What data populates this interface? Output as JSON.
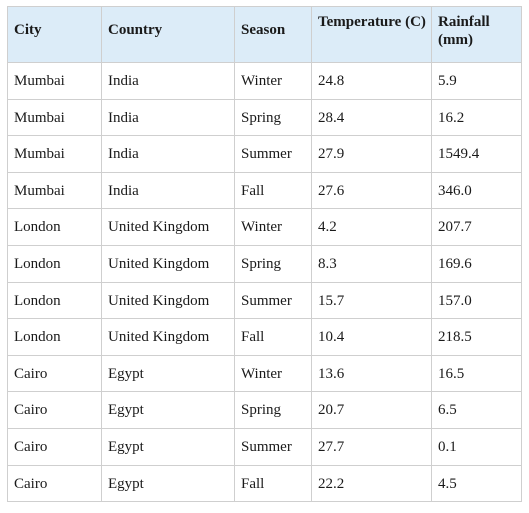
{
  "table": {
    "headers": {
      "city": "City",
      "country": "Country",
      "season": "Season",
      "temperature": "Temperature (C)",
      "rainfall": "Rainfall (mm)"
    },
    "rows": [
      {
        "city": "Mumbai",
        "country": "India",
        "season": "Winter",
        "temperature": "24.8",
        "rainfall": "5.9"
      },
      {
        "city": "Mumbai",
        "country": "India",
        "season": "Spring",
        "temperature": "28.4",
        "rainfall": "16.2"
      },
      {
        "city": "Mumbai",
        "country": "India",
        "season": "Summer",
        "temperature": "27.9",
        "rainfall": "1549.4"
      },
      {
        "city": "Mumbai",
        "country": "India",
        "season": "Fall",
        "temperature": "27.6",
        "rainfall": "346.0"
      },
      {
        "city": "London",
        "country": "United Kingdom",
        "season": "Winter",
        "temperature": "4.2",
        "rainfall": "207.7"
      },
      {
        "city": "London",
        "country": "United Kingdom",
        "season": "Spring",
        "temperature": "8.3",
        "rainfall": "169.6"
      },
      {
        "city": "London",
        "country": "United Kingdom",
        "season": "Summer",
        "temperature": "15.7",
        "rainfall": "157.0"
      },
      {
        "city": "London",
        "country": "United Kingdom",
        "season": "Fall",
        "temperature": "10.4",
        "rainfall": "218.5"
      },
      {
        "city": "Cairo",
        "country": "Egypt",
        "season": "Winter",
        "temperature": "13.6",
        "rainfall": "16.5"
      },
      {
        "city": "Cairo",
        "country": "Egypt",
        "season": "Spring",
        "temperature": "20.7",
        "rainfall": "6.5"
      },
      {
        "city": "Cairo",
        "country": "Egypt",
        "season": "Summer",
        "temperature": "27.7",
        "rainfall": "0.1"
      },
      {
        "city": "Cairo",
        "country": "Egypt",
        "season": "Fall",
        "temperature": "22.2",
        "rainfall": "4.5"
      }
    ]
  },
  "colors": {
    "header_background": "#dcecf8",
    "border": "#cfcfcf"
  }
}
